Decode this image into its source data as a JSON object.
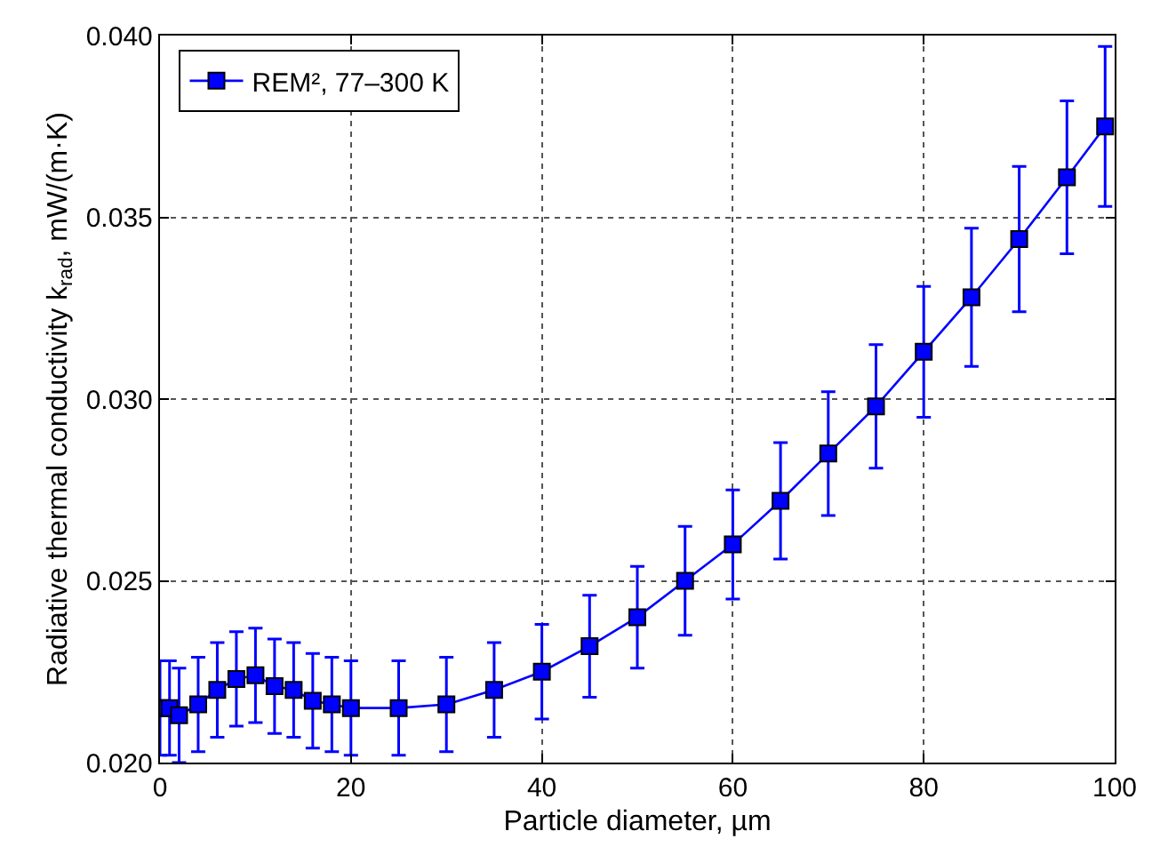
{
  "chart_data": {
    "type": "line",
    "xlabel": "Particle diameter, µm",
    "ylabel": "Radiative thermal conductivity k$_{rad}$, mW/(m·K)",
    "x": [
      0,
      1,
      2,
      4,
      6,
      8,
      10,
      12,
      14,
      16,
      18,
      20,
      25,
      30,
      35,
      40,
      45,
      50,
      55,
      60,
      65,
      70,
      75,
      80,
      85,
      90,
      95,
      99
    ],
    "series": [
      {
        "name": "REM², 77–300 K",
        "color": "#0000ff",
        "values": [
          0.0215,
          0.0215,
          0.0213,
          0.0216,
          0.022,
          0.0223,
          0.0224,
          0.0221,
          0.022,
          0.0217,
          0.0216,
          0.0215,
          0.0215,
          0.0216,
          0.022,
          0.0225,
          0.0232,
          0.024,
          0.025,
          0.026,
          0.0272,
          0.0285,
          0.0298,
          0.0313,
          0.0328,
          0.0344,
          0.0361,
          0.0375
        ],
        "errors": [
          0.0013,
          0.0013,
          0.0013,
          0.0013,
          0.0013,
          0.0013,
          0.0013,
          0.0013,
          0.0013,
          0.0013,
          0.0013,
          0.0013,
          0.0013,
          0.0013,
          0.0013,
          0.0013,
          0.0014,
          0.0014,
          0.0015,
          0.0015,
          0.0016,
          0.0017,
          0.0017,
          0.0018,
          0.0019,
          0.002,
          0.0021,
          0.0022
        ]
      }
    ],
    "xlim": [
      0,
      100
    ],
    "xticks": [
      0,
      20,
      40,
      60,
      80,
      100
    ],
    "ylim": [
      0.02,
      0.04
    ],
    "yticks": [
      {
        "value": 0.02,
        "label": "0.020"
      },
      {
        "value": 0.025,
        "label": "0.025"
      },
      {
        "value": 0.03,
        "label": "0.030"
      },
      {
        "value": 0.035,
        "label": "0.035"
      },
      {
        "value": 0.04,
        "label": "0.040"
      }
    ],
    "grid": true,
    "legend": "top left",
    "marker": "square",
    "line_style": "solid"
  }
}
